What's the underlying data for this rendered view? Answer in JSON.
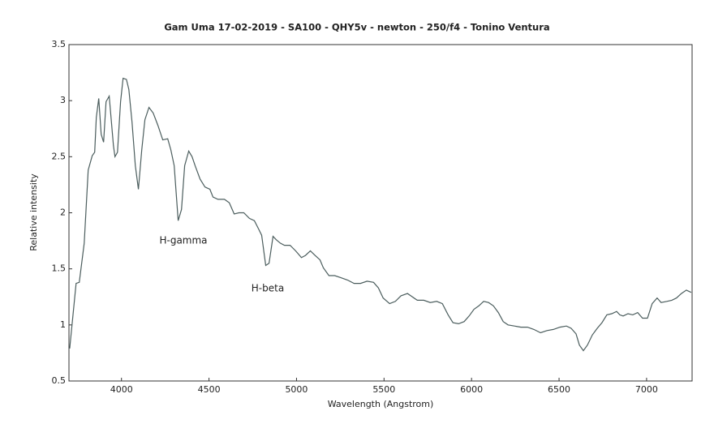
{
  "chart_data": {
    "type": "line",
    "title": "Gam Uma 17-02-2019 - SA100 - QHY5v - newton - 250/f4 - Tonino Ventura",
    "x_label": "Wavelength (Angstrom)",
    "y_label": "Relative intensity",
    "annotations": [
      "H-gamma",
      "H-beta"
    ],
    "color": "#4b5d5d",
    "xlim": [
      3700,
      7260
    ],
    "ylim": [
      0.5,
      3.5
    ],
    "xticks": [
      4000,
      4500,
      5000,
      5500,
      6000,
      6500,
      7000
    ],
    "yticks": [
      0.5,
      1,
      1.5,
      2,
      2.5,
      3,
      3.5
    ],
    "grid": false,
    "x": [
      3704,
      3741,
      3759,
      3787,
      3810,
      3833,
      3847,
      3856,
      3870,
      3884,
      3898,
      3912,
      3930,
      3954,
      3963,
      3977,
      3995,
      4009,
      4028,
      4042,
      4060,
      4079,
      4097,
      4116,
      4134,
      4157,
      4181,
      4208,
      4236,
      4264,
      4282,
      4301,
      4324,
      4343,
      4361,
      4384,
      4403,
      4421,
      4449,
      4477,
      4505,
      4523,
      4551,
      4588,
      4616,
      4644,
      4671,
      4699,
      4731,
      4759,
      4782,
      4801,
      4824,
      4843,
      4866,
      4884,
      4907,
      4931,
      4963,
      4995,
      5028,
      5051,
      5079,
      5106,
      5134,
      5153,
      5185,
      5218,
      5255,
      5292,
      5329,
      5366,
      5403,
      5440,
      5468,
      5495,
      5532,
      5565,
      5597,
      5634,
      5662,
      5690,
      5727,
      5764,
      5801,
      5833,
      5866,
      5894,
      5926,
      5958,
      5986,
      6014,
      6042,
      6069,
      6097,
      6125,
      6153,
      6181,
      6208,
      6245,
      6282,
      6319,
      6356,
      6394,
      6431,
      6468,
      6505,
      6542,
      6569,
      6597,
      6616,
      6639,
      6662,
      6690,
      6718,
      6745,
      6773,
      6801,
      6829,
      6847,
      6866,
      6894,
      6921,
      6949,
      6977,
      7005,
      7032,
      7060,
      7083,
      7116,
      7144,
      7171,
      7199,
      7227,
      7255
    ],
    "values": [
      0.79,
      1.37,
      1.38,
      1.73,
      2.38,
      2.51,
      2.54,
      2.85,
      3.02,
      2.7,
      2.63,
      2.99,
      3.04,
      2.6,
      2.5,
      2.54,
      2.99,
      3.2,
      3.19,
      3.1,
      2.81,
      2.42,
      2.21,
      2.56,
      2.83,
      2.94,
      2.89,
      2.78,
      2.65,
      2.66,
      2.56,
      2.42,
      1.93,
      2.03,
      2.42,
      2.55,
      2.5,
      2.42,
      2.3,
      2.23,
      2.21,
      2.14,
      2.12,
      2.12,
      2.09,
      1.99,
      2.0,
      2.0,
      1.95,
      1.93,
      1.86,
      1.8,
      1.53,
      1.55,
      1.79,
      1.76,
      1.73,
      1.71,
      1.71,
      1.66,
      1.6,
      1.62,
      1.66,
      1.62,
      1.58,
      1.51,
      1.44,
      1.44,
      1.42,
      1.4,
      1.37,
      1.37,
      1.39,
      1.38,
      1.33,
      1.24,
      1.19,
      1.21,
      1.26,
      1.28,
      1.25,
      1.22,
      1.22,
      1.2,
      1.21,
      1.19,
      1.09,
      1.02,
      1.01,
      1.03,
      1.08,
      1.14,
      1.17,
      1.21,
      1.2,
      1.17,
      1.11,
      1.03,
      1.0,
      0.99,
      0.98,
      0.98,
      0.96,
      0.93,
      0.95,
      0.96,
      0.98,
      0.99,
      0.97,
      0.92,
      0.82,
      0.77,
      0.82,
      0.91,
      0.97,
      1.02,
      1.09,
      1.1,
      1.12,
      1.09,
      1.08,
      1.1,
      1.09,
      1.11,
      1.06,
      1.06,
      1.19,
      1.24,
      1.2,
      1.21,
      1.22,
      1.24,
      1.28,
      1.31,
      1.29
    ]
  }
}
